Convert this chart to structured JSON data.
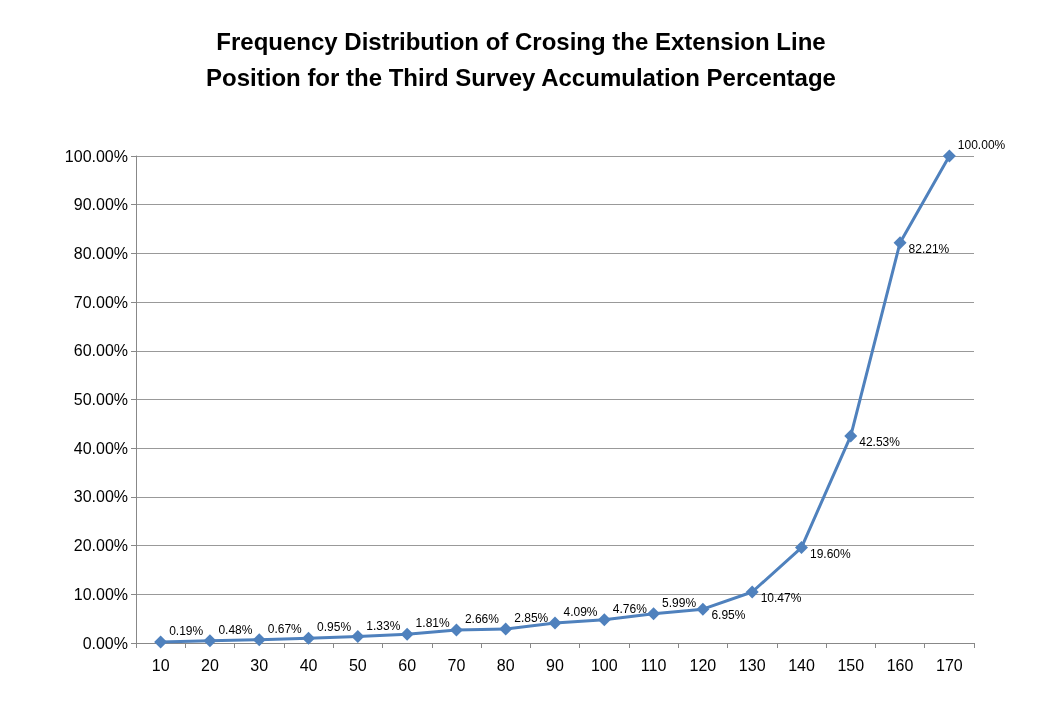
{
  "chart_data": {
    "type": "line",
    "title": "Frequency Distribution of Crosing the Extension Line\nPosition for the Third Survey Accumulation Percentage",
    "categories": [
      "10",
      "20",
      "30",
      "40",
      "50",
      "60",
      "70",
      "80",
      "90",
      "100",
      "110",
      "120",
      "130",
      "140",
      "150",
      "160",
      "170"
    ],
    "values": [
      0.19,
      0.48,
      0.67,
      0.95,
      1.33,
      1.81,
      2.66,
      2.85,
      4.09,
      4.76,
      5.99,
      6.95,
      10.47,
      19.6,
      42.53,
      82.21,
      100.0
    ],
    "value_labels": [
      "0.19%",
      "0.48%",
      "0.67%",
      "0.95%",
      "1.33%",
      "1.81%",
      "2.66%",
      "2.85%",
      "4.09%",
      "4.76%",
      "5.99%",
      "6.95%",
      "10.47%",
      "19.60%",
      "42.53%",
      "82.21%",
      "100.00%"
    ],
    "color": "#4f81bd",
    "marker": "diamond",
    "grid": "y",
    "ylim": [
      0,
      100
    ],
    "yticks": [
      {
        "value": 0,
        "label": "0.00%"
      },
      {
        "value": 10,
        "label": "10.00%"
      },
      {
        "value": 20,
        "label": "20.00%"
      },
      {
        "value": 30,
        "label": "30.00%"
      },
      {
        "value": 40,
        "label": "40.00%"
      },
      {
        "value": 50,
        "label": "50.00%"
      },
      {
        "value": 60,
        "label": "60.00%"
      },
      {
        "value": 70,
        "label": "70.00%"
      },
      {
        "value": 80,
        "label": "80.00%"
      },
      {
        "value": 90,
        "label": "90.00%"
      },
      {
        "value": 100,
        "label": "100.00%"
      }
    ]
  }
}
